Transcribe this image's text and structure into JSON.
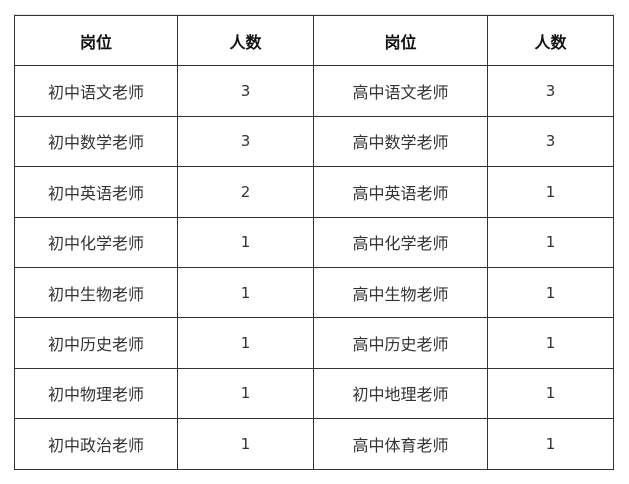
{
  "table": {
    "headers": [
      "岗位",
      "人数",
      "岗位",
      "人数"
    ],
    "rows": [
      [
        "初中语文老师",
        "3",
        "高中语文老师",
        "3"
      ],
      [
        "初中数学老师",
        "3",
        "高中数学老师",
        "3"
      ],
      [
        "初中英语老师",
        "2",
        "高中英语老师",
        "1"
      ],
      [
        "初中化学老师",
        "1",
        "高中化学老师",
        "1"
      ],
      [
        "初中生物老师",
        "1",
        "高中生物老师",
        "1"
      ],
      [
        "初中历史老师",
        "1",
        "高中历史老师",
        "1"
      ],
      [
        "初中物理老师",
        "1",
        "初中地理老师",
        "1"
      ],
      [
        "初中政治老师",
        "1",
        "高中体育老师",
        "1"
      ]
    ]
  }
}
